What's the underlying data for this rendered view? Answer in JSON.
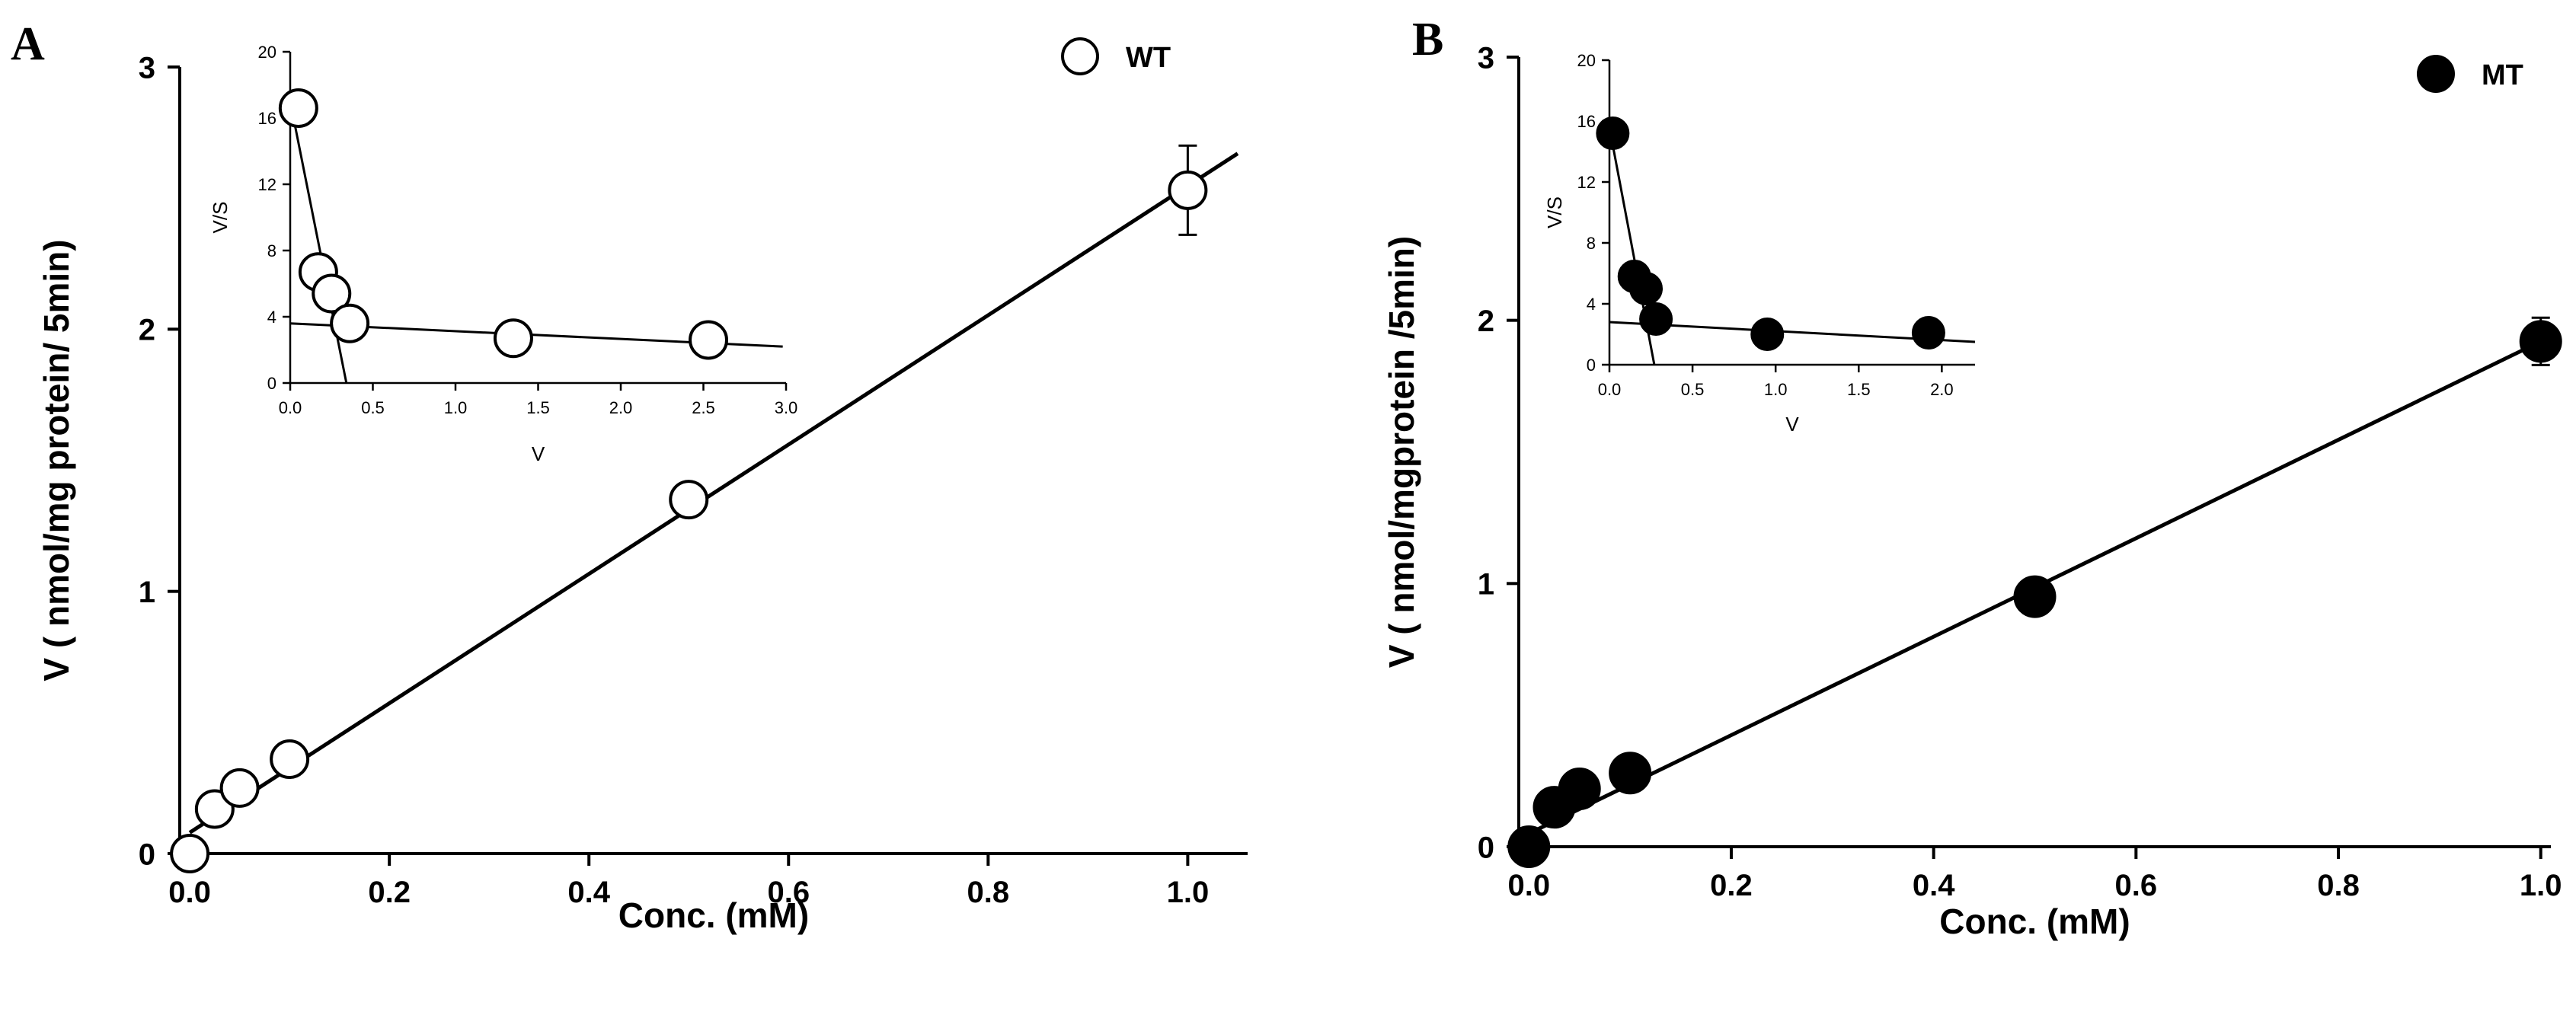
{
  "figure": {
    "panels": [
      {
        "letter": "A",
        "legend": {
          "label": "WT",
          "marker": "open-circle"
        },
        "colors": {
          "marker_fill": "#ffffff",
          "marker_stroke": "#000000",
          "line": "#000000"
        }
      },
      {
        "letter": "B",
        "legend": {
          "label": "MT",
          "marker": "filled-circle"
        },
        "colors": {
          "marker_fill": "#000000",
          "marker_stroke": "#000000",
          "line": "#000000"
        }
      }
    ]
  },
  "chart_data": [
    {
      "id": "A-main",
      "type": "scatter",
      "title": "",
      "xlabel": "Conc. (mM)",
      "ylabel": "V ( nmol/mg protein/ 5min)",
      "xlim": [
        -0.01,
        1.06
      ],
      "ylim": [
        0,
        3
      ],
      "xticks": [
        0.0,
        0.2,
        0.4,
        0.6,
        0.8,
        1.0
      ],
      "xtick_labels": [
        "0.0",
        "0.2",
        "0.4",
        "0.6",
        "0.8",
        "1.0"
      ],
      "yticks": [
        0,
        1,
        2,
        3
      ],
      "ytick_labels": [
        "0",
        "1",
        "2",
        "3"
      ],
      "series": [
        {
          "name": "WT",
          "x": [
            0.0,
            0.025,
            0.05,
            0.1,
            0.5,
            1.0
          ],
          "y": [
            0.0,
            0.17,
            0.25,
            0.36,
            1.35,
            2.53
          ],
          "yerr": [
            0,
            0,
            0,
            0,
            0,
            0.17
          ]
        }
      ],
      "fit_line": {
        "x": [
          0.0,
          1.05
        ],
        "y": [
          0.08,
          2.67
        ]
      },
      "legend": "top-right"
    },
    {
      "id": "A-inset",
      "type": "scatter",
      "title": "",
      "xlabel": "V",
      "ylabel": "V/S",
      "xlim": [
        0,
        3.0
      ],
      "ylim": [
        0,
        20
      ],
      "xticks": [
        0.0,
        0.5,
        1.0,
        1.5,
        2.0,
        2.5,
        3.0
      ],
      "xtick_labels": [
        "0.0",
        "0.5",
        "1.0",
        "1.5",
        "2.0",
        "2.5",
        "3.0"
      ],
      "yticks": [
        0,
        4,
        8,
        12,
        16,
        20
      ],
      "ytick_labels": [
        "0",
        "4",
        "8",
        "12",
        "16",
        "20"
      ],
      "series": [
        {
          "name": "WT",
          "x": [
            0.05,
            0.17,
            0.25,
            0.36,
            1.35,
            2.53
          ],
          "y": [
            16.6,
            6.7,
            5.4,
            3.6,
            2.7,
            2.6
          ]
        }
      ],
      "fit_lines": [
        {
          "x": [
            0.02,
            0.34
          ],
          "y": [
            16.0,
            0.0
          ]
        },
        {
          "x": [
            0.0,
            2.98
          ],
          "y": [
            3.6,
            2.2
          ]
        }
      ]
    },
    {
      "id": "B-main",
      "type": "scatter",
      "title": "",
      "xlabel": "Conc. (mM)",
      "ylabel": "V ( nmol/mgprotein /5min)",
      "xlim": [
        -0.01,
        1.01
      ],
      "ylim": [
        0,
        3
      ],
      "xticks": [
        0.0,
        0.2,
        0.4,
        0.6,
        0.8,
        1.0
      ],
      "xtick_labels": [
        "0.0",
        "0.2",
        "0.4",
        "0.6",
        "0.8",
        "1.0"
      ],
      "yticks": [
        0,
        1,
        2,
        3
      ],
      "ytick_labels": [
        "0",
        "1",
        "2",
        "3"
      ],
      "series": [
        {
          "name": "MT",
          "x": [
            0.0,
            0.025,
            0.05,
            0.1,
            0.5,
            1.0
          ],
          "y": [
            0.0,
            0.15,
            0.22,
            0.28,
            0.95,
            1.92
          ],
          "yerr": [
            0,
            0,
            0,
            0,
            0,
            0.09
          ]
        }
      ],
      "fit_line": {
        "x": [
          0.0,
          1.0
        ],
        "y": [
          0.05,
          1.92
        ]
      },
      "legend": "top-right"
    },
    {
      "id": "B-inset",
      "type": "scatter",
      "title": "",
      "xlabel": "V",
      "ylabel": "V/S",
      "xlim": [
        0,
        2.2
      ],
      "ylim": [
        0,
        20
      ],
      "xticks": [
        0.0,
        0.5,
        1.0,
        1.5,
        2.0
      ],
      "xtick_labels": [
        "0.0",
        "0.5",
        "1.0",
        "1.5",
        "2.0"
      ],
      "yticks": [
        0,
        4,
        8,
        12,
        16,
        20
      ],
      "ytick_labels": [
        "0",
        "4",
        "8",
        "12",
        "16",
        "20"
      ],
      "series": [
        {
          "name": "MT",
          "x": [
            0.02,
            0.15,
            0.22,
            0.28,
            0.95,
            1.92
          ],
          "y": [
            15.2,
            5.8,
            5.0,
            3.0,
            2.0,
            2.1
          ]
        }
      ],
      "fit_lines": [
        {
          "x": [
            0.01,
            0.27
          ],
          "y": [
            15.0,
            0.0
          ]
        },
        {
          "x": [
            0.0,
            2.2
          ],
          "y": [
            2.8,
            1.5
          ]
        }
      ]
    }
  ]
}
